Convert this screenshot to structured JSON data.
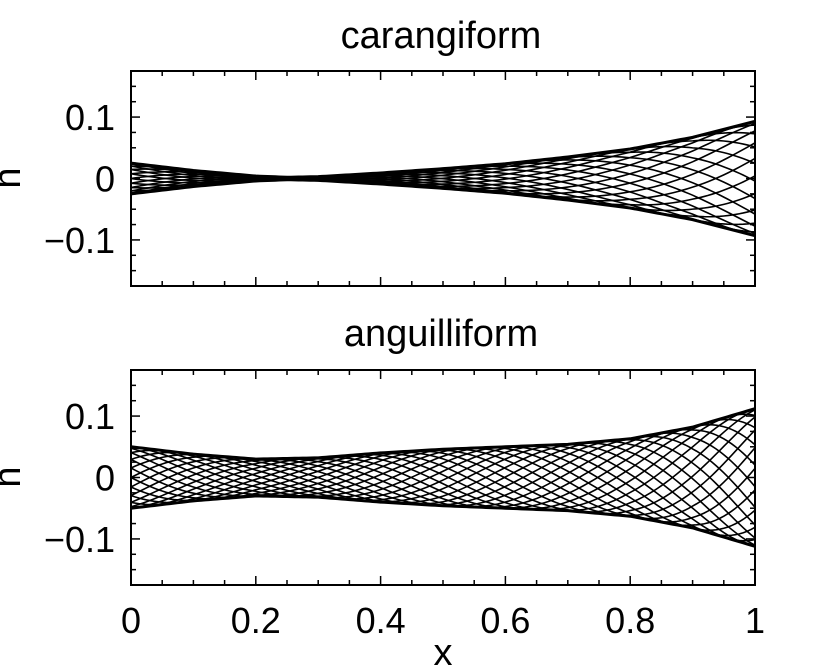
{
  "chart_data": [
    {
      "type": "line",
      "title": "carangiform",
      "xlabel": "",
      "ylabel": "h",
      "xlim": [
        0,
        1
      ],
      "ylim": [
        -0.175,
        0.175
      ],
      "xticks": [
        "",
        "",
        "",
        "",
        "",
        ""
      ],
      "yticks": [
        {
          "value": 0.1,
          "label": "0.1"
        },
        {
          "value": 0,
          "label": "0"
        },
        {
          "value": -0.1,
          "label": "−0.1"
        }
      ],
      "grid": false,
      "legend": "none",
      "line_color": "#000000",
      "waveform": {
        "phase_count": 20,
        "wave_number": 5.7,
        "envelope": [
          {
            "x": 0.0,
            "a": 0.025
          },
          {
            "x": 0.1,
            "a": 0.013
          },
          {
            "x": 0.2,
            "a": 0.004
          },
          {
            "x": 0.25,
            "a": 0.002
          },
          {
            "x": 0.3,
            "a": 0.003
          },
          {
            "x": 0.4,
            "a": 0.009
          },
          {
            "x": 0.5,
            "a": 0.016
          },
          {
            "x": 0.6,
            "a": 0.024
          },
          {
            "x": 0.7,
            "a": 0.035
          },
          {
            "x": 0.8,
            "a": 0.048
          },
          {
            "x": 0.9,
            "a": 0.067
          },
          {
            "x": 1.0,
            "a": 0.093
          }
        ]
      }
    },
    {
      "type": "line",
      "title": "anguilliform",
      "xlabel": "x",
      "ylabel": "h",
      "xlim": [
        0,
        1
      ],
      "ylim": [
        -0.175,
        0.175
      ],
      "xticks": [
        "0",
        "0.2",
        "0.4",
        "0.6",
        "0.8",
        "1"
      ],
      "yticks": [
        {
          "value": 0.1,
          "label": "0.1"
        },
        {
          "value": 0,
          "label": "0"
        },
        {
          "value": -0.1,
          "label": "−0.1"
        }
      ],
      "grid": false,
      "legend": "none",
      "line_color": "#000000",
      "waveform": {
        "phase_count": 20,
        "wave_number": 10.5,
        "envelope": [
          {
            "x": 0.0,
            "a": 0.05
          },
          {
            "x": 0.1,
            "a": 0.038
          },
          {
            "x": 0.2,
            "a": 0.03
          },
          {
            "x": 0.3,
            "a": 0.032
          },
          {
            "x": 0.4,
            "a": 0.04
          },
          {
            "x": 0.5,
            "a": 0.046
          },
          {
            "x": 0.6,
            "a": 0.05
          },
          {
            "x": 0.7,
            "a": 0.054
          },
          {
            "x": 0.8,
            "a": 0.063
          },
          {
            "x": 0.9,
            "a": 0.082
          },
          {
            "x": 1.0,
            "a": 0.112
          }
        ]
      }
    }
  ]
}
